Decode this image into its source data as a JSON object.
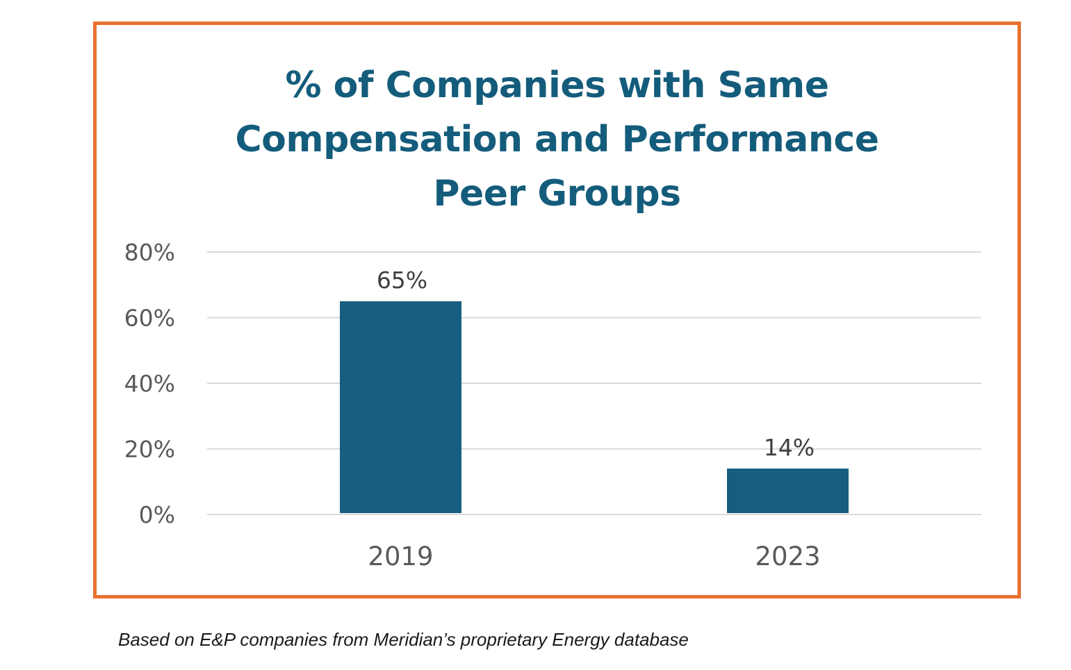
{
  "colors": {
    "frame": "#E8712F",
    "bar": "#165E7F",
    "title": "#145C7B",
    "grid": "#D9D9D9",
    "tick_text": "#595959"
  },
  "chart_data": {
    "type": "bar",
    "title_lines": [
      "% of Companies with Same",
      "Compensation and Performance",
      "Peer Groups"
    ],
    "categories": [
      "2019",
      "2023"
    ],
    "values": [
      65,
      14
    ],
    "data_labels": [
      "65%",
      "14%"
    ],
    "ylim": [
      0,
      80
    ],
    "yticks": [
      0,
      20,
      40,
      60,
      80
    ],
    "ytick_labels": [
      "0%",
      "20%",
      "40%",
      "60%",
      "80%"
    ],
    "xlabel": "",
    "ylabel": "",
    "grid": true,
    "legend": "none"
  },
  "caption": "Based on E&P companies from Meridian’s proprietary Energy database"
}
